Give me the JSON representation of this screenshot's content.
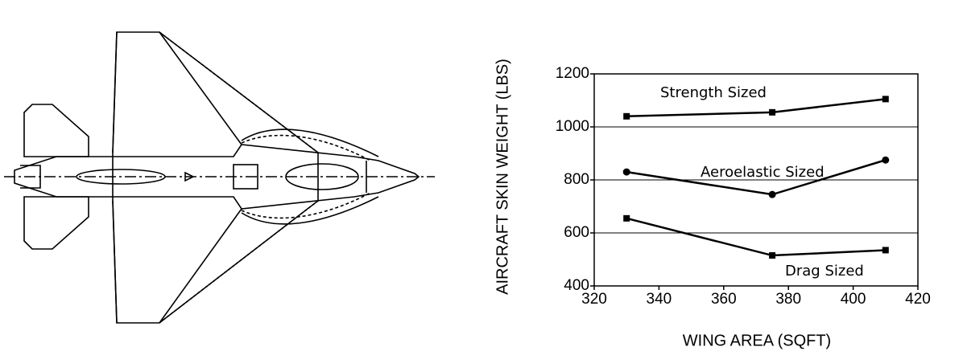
{
  "chart_data": {
    "type": "line",
    "xlabel": "WING AREA (SQFT)",
    "ylabel": "AIRCRAFT SKIN WEIGHT (LBS)",
    "x": [
      330,
      375,
      410
    ],
    "series": [
      {
        "name": "Strength Sized",
        "color": "#000000",
        "marker": "square",
        "values": [
          1040,
          1055,
          1105
        ]
      },
      {
        "name": "Aeroelastic Sized",
        "color": "#000000",
        "marker": "circle",
        "values": [
          830,
          745,
          875
        ]
      },
      {
        "name": "Drag Sized",
        "color": "#000000",
        "marker": "square",
        "values": [
          655,
          515,
          535
        ]
      }
    ],
    "xlim": [
      320,
      420
    ],
    "xticks": [
      320,
      340,
      360,
      380,
      400,
      420
    ],
    "ylim": [
      400,
      1200
    ],
    "yticks": [
      400,
      600,
      800,
      1000,
      1200
    ],
    "grid": true
  }
}
